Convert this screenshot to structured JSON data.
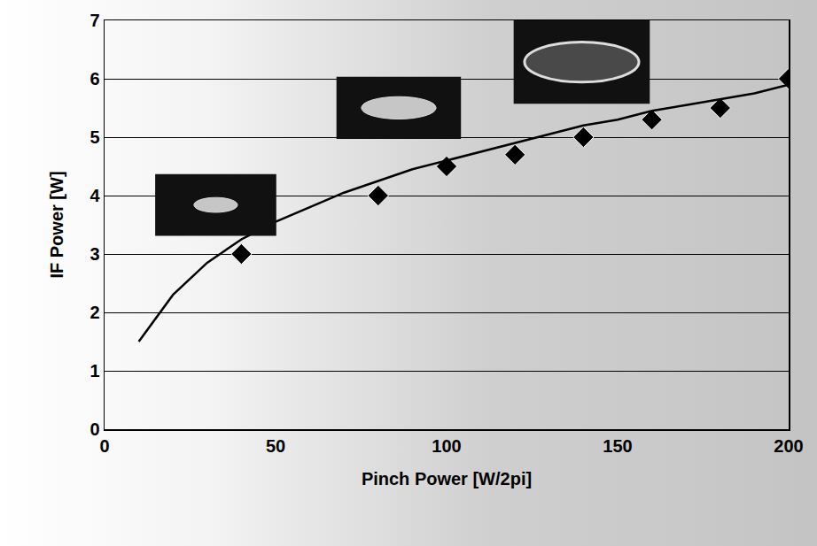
{
  "chart_data": {
    "type": "scatter",
    "x_label": "Pinch Power [W/2pi]",
    "y_label": "IF Power [W]",
    "xlim": [
      0,
      200
    ],
    "xticks": [
      0,
      50,
      100,
      150,
      200
    ],
    "ylim": [
      0,
      7
    ],
    "yticks": [
      0,
      1,
      2,
      3,
      4,
      5,
      6,
      7
    ],
    "grid": true,
    "series": [
      {
        "type": "scatter",
        "marker": "diamond",
        "color": "#000000",
        "x": [
          40,
          80,
          100,
          120,
          140,
          160,
          180,
          200
        ],
        "values": [
          3.0,
          4.0,
          4.5,
          4.7,
          5.0,
          5.3,
          5.5,
          6.0
        ]
      },
      {
        "type": "line",
        "line_style": "solid",
        "color": "#000000",
        "x": [
          10,
          20,
          30,
          40,
          50,
          60,
          70,
          80,
          90,
          100,
          110,
          120,
          130,
          140,
          150,
          160,
          170,
          180,
          190,
          200
        ],
        "values": [
          1.5,
          2.3,
          2.85,
          3.25,
          3.55,
          3.8,
          4.05,
          4.25,
          4.45,
          4.6,
          4.75,
          4.9,
          5.05,
          5.2,
          5.3,
          5.45,
          5.55,
          5.65,
          5.75,
          5.9
        ]
      }
    ]
  }
}
